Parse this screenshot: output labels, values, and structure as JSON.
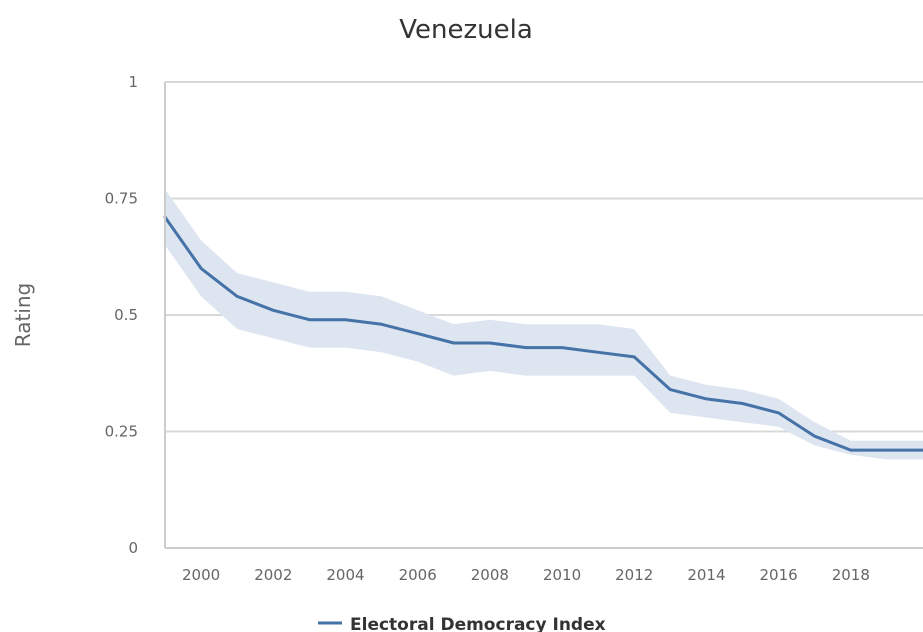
{
  "chart_data": {
    "type": "line",
    "title": "Venezuela",
    "xlabel": "",
    "ylabel": "Rating",
    "xlim": [
      1999,
      2020
    ],
    "ylim": [
      0,
      1
    ],
    "y_ticks": [
      "0",
      "0.25",
      "0.5",
      "0.75",
      "1"
    ],
    "x_ticks": [
      "2000",
      "2002",
      "2004",
      "2006",
      "2008",
      "2010",
      "2012",
      "2014",
      "2016",
      "2018",
      "2…"
    ],
    "legend_position": "bottom",
    "grid": true,
    "series": [
      {
        "name": "Electoral Democracy Index",
        "color": "#4572a7",
        "band_color": "#dde5f0",
        "x": [
          1999,
          2000,
          2001,
          2002,
          2003,
          2004,
          2005,
          2006,
          2007,
          2008,
          2009,
          2010,
          2011,
          2012,
          2013,
          2014,
          2015,
          2016,
          2017,
          2018,
          2019,
          2020
        ],
        "values": [
          0.71,
          0.6,
          0.54,
          0.51,
          0.49,
          0.49,
          0.48,
          0.46,
          0.44,
          0.44,
          0.43,
          0.43,
          0.42,
          0.41,
          0.34,
          0.32,
          0.31,
          0.29,
          0.24,
          0.21,
          0.21,
          0.21
        ],
        "upper": [
          0.77,
          0.66,
          0.59,
          0.57,
          0.55,
          0.55,
          0.54,
          0.51,
          0.48,
          0.49,
          0.48,
          0.48,
          0.48,
          0.47,
          0.37,
          0.35,
          0.34,
          0.32,
          0.27,
          0.23,
          0.23,
          0.23
        ],
        "lower": [
          0.65,
          0.54,
          0.47,
          0.45,
          0.43,
          0.43,
          0.42,
          0.4,
          0.37,
          0.38,
          0.37,
          0.37,
          0.37,
          0.37,
          0.29,
          0.28,
          0.27,
          0.26,
          0.22,
          0.2,
          0.19,
          0.19
        ]
      }
    ]
  }
}
